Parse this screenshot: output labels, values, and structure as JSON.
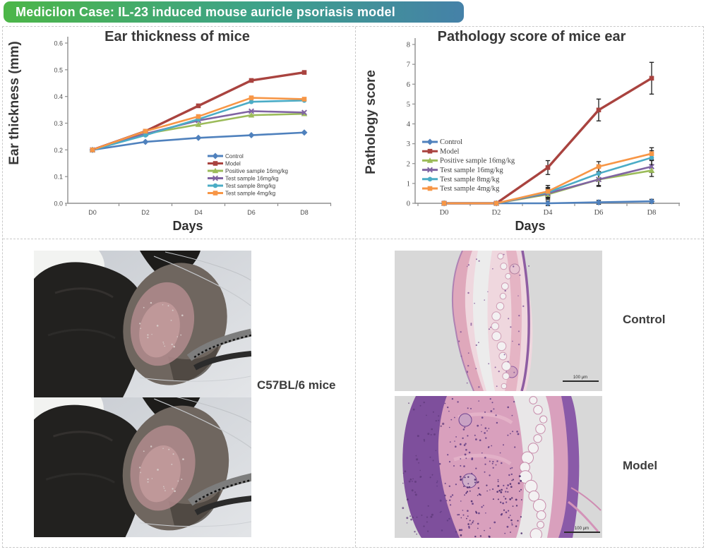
{
  "banner": {
    "title": "Medicilon Case: IL-23 induced mouse auricle psoriasis model",
    "gradient": [
      "#4CB648",
      "#3DA289",
      "#4581A8"
    ],
    "text_color": "#FFFFFF"
  },
  "chart_data": [
    {
      "type": "line",
      "title": "Ear thickness of mice",
      "xlabel": "Days",
      "ylabel": "Ear thickness (mm)",
      "x": [
        "D0",
        "D2",
        "D4",
        "D6",
        "D8"
      ],
      "ylim": [
        0,
        0.6
      ],
      "yticks": [
        0,
        0.1,
        0.2,
        0.3,
        0.4,
        0.5,
        0.6
      ],
      "ytick_labels": [
        "0.0",
        "0.1",
        "0.2",
        "0.3",
        "0.4",
        "0.5",
        "0.6"
      ],
      "grid": false,
      "legend_position": "inside lower right",
      "series": [
        {
          "name": "Control",
          "color": "#4F81BD",
          "marker": "diamond",
          "values": [
            0.2,
            0.23,
            0.245,
            0.255,
            0.265
          ]
        },
        {
          "name": "Model",
          "color": "#A9433F",
          "marker": "square",
          "values": [
            0.2,
            0.27,
            0.365,
            0.46,
            0.49
          ]
        },
        {
          "name": "Positive sample 16mg/kg",
          "color": "#9BBB59",
          "marker": "triangle",
          "values": [
            0.2,
            0.26,
            0.295,
            0.33,
            0.335
          ]
        },
        {
          "name": "Test sample 16mg/kg",
          "color": "#8064A2",
          "marker": "x",
          "values": [
            0.2,
            0.26,
            0.31,
            0.345,
            0.34
          ]
        },
        {
          "name": "Test sample 8mg/kg",
          "color": "#4BACC6",
          "marker": "circle",
          "values": [
            0.2,
            0.255,
            0.315,
            0.38,
            0.385
          ]
        },
        {
          "name": "Test sample 4mg/kg",
          "color": "#F79646",
          "marker": "square",
          "values": [
            0.2,
            0.27,
            0.325,
            0.395,
            0.39
          ]
        }
      ]
    },
    {
      "type": "line",
      "title": "Pathology score of mice ear",
      "xlabel": "Days",
      "ylabel": "Pathology score",
      "x": [
        "D0",
        "D2",
        "D4",
        "D6",
        "D8"
      ],
      "ylim": [
        0,
        8
      ],
      "yticks": [
        0,
        1,
        2,
        3,
        4,
        5,
        6,
        7,
        8
      ],
      "ytick_labels": [
        "0",
        "1",
        "2",
        "3",
        "4",
        "5",
        "6",
        "7",
        "8"
      ],
      "grid": false,
      "legend_position": "inside center left",
      "error_bars": true,
      "series": [
        {
          "name": "Control",
          "color": "#4F81BD",
          "marker": "diamond",
          "values": [
            0,
            0,
            0,
            0.05,
            0.1
          ],
          "errors": [
            0,
            0,
            0.12,
            0.1,
            0.1
          ]
        },
        {
          "name": "Model",
          "color": "#A9433F",
          "marker": "square",
          "values": [
            0,
            0,
            1.8,
            4.7,
            6.3
          ],
          "errors": [
            0,
            0,
            0.35,
            0.55,
            0.8
          ]
        },
        {
          "name": "Positive sample 16mg/kg",
          "color": "#9BBB59",
          "marker": "triangle",
          "values": [
            0,
            0,
            0.45,
            1.2,
            1.65
          ],
          "errors": [
            0,
            0,
            0.25,
            0.3,
            0.3
          ]
        },
        {
          "name": "Test sample 16mg/kg",
          "color": "#8064A2",
          "marker": "x",
          "values": [
            0,
            0,
            0.5,
            1.2,
            1.85
          ],
          "errors": [
            0,
            0,
            0.25,
            0.35,
            0.3
          ]
        },
        {
          "name": "Test sample 8mg/kg",
          "color": "#4BACC6",
          "marker": "circle",
          "values": [
            0,
            0,
            0.55,
            1.5,
            2.3
          ],
          "errors": [
            0,
            0,
            0.25,
            0.3,
            0.35
          ]
        },
        {
          "name": "Test sample 4mg/kg",
          "color": "#F79646",
          "marker": "square",
          "values": [
            0,
            0,
            0.6,
            1.85,
            2.5
          ],
          "errors": [
            0,
            0,
            0.3,
            0.25,
            0.3
          ]
        }
      ]
    }
  ],
  "specimen_panel": {
    "label": "C57BL/6 mice"
  },
  "histology_panel": {
    "top_label": "Control",
    "bottom_label": "Model",
    "scale_bar_label": "100 μm"
  }
}
